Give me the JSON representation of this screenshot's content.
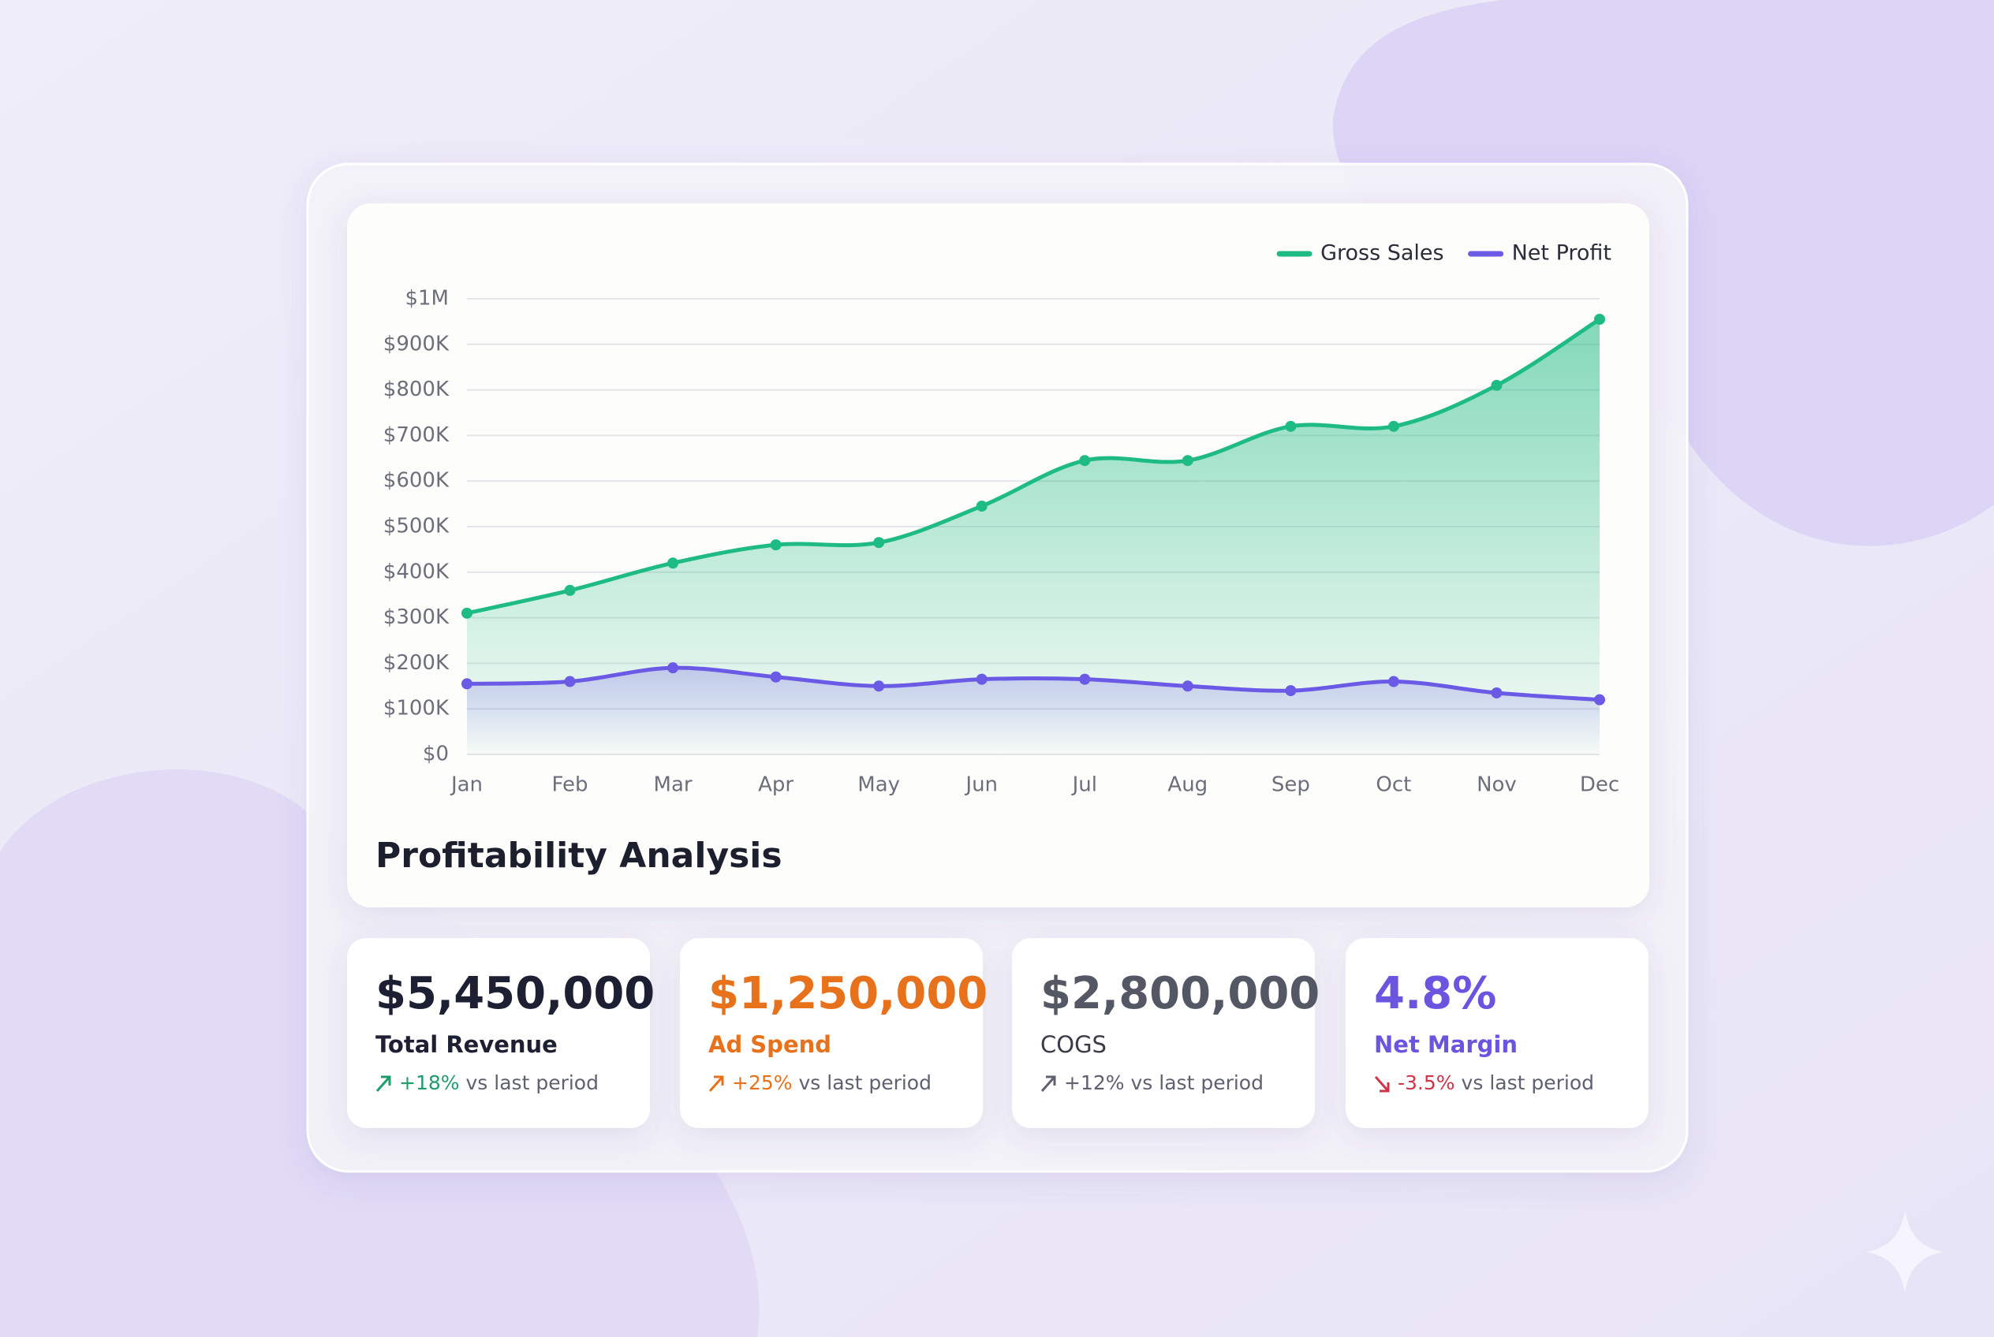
{
  "chart_data": {
    "type": "line",
    "title": "Profitability Analysis",
    "categories": [
      "Jan",
      "Feb",
      "Mar",
      "Apr",
      "May",
      "Jun",
      "Jul",
      "Aug",
      "Sep",
      "Oct",
      "Nov",
      "Dec"
    ],
    "series": [
      {
        "name": "Gross Sales",
        "color": "#1fbb84",
        "values": [
          310000,
          360000,
          420000,
          460000,
          465000,
          545000,
          645000,
          645000,
          720000,
          720000,
          810000,
          955000
        ]
      },
      {
        "name": "Net Profit",
        "color": "#6a5ae6",
        "values": [
          155000,
          160000,
          190000,
          170000,
          150000,
          165000,
          165000,
          150000,
          140000,
          160000,
          135000,
          120000
        ]
      }
    ],
    "ylim": [
      0,
      1000000
    ],
    "yticks": [
      {
        "value": 0,
        "label": "$0"
      },
      {
        "value": 100000,
        "label": "$100K"
      },
      {
        "value": 200000,
        "label": "$200K"
      },
      {
        "value": 300000,
        "label": "$300K"
      },
      {
        "value": 400000,
        "label": "$400K"
      },
      {
        "value": 500000,
        "label": "$500K"
      },
      {
        "value": 600000,
        "label": "$600K"
      },
      {
        "value": 700000,
        "label": "$700K"
      },
      {
        "value": 800000,
        "label": "$800K"
      },
      {
        "value": 900000,
        "label": "$900K"
      },
      {
        "value": 1000000,
        "label": "$1M"
      }
    ],
    "grid": true,
    "legend": "top-right",
    "area": true
  },
  "kpis": [
    {
      "value": "$5,450,000",
      "label": "Total Revenue",
      "change": "+18%",
      "note": "vs last period"
    },
    {
      "value": "$1,250,000",
      "label": "Ad Spend",
      "change": "+25%",
      "note": "vs last period"
    },
    {
      "value": "$2,800,000",
      "label": "COGS",
      "change": "+12%",
      "note": "vs last period"
    },
    {
      "value": "4.8%",
      "label": "Net Margin",
      "change": "-3.5%",
      "note": "vs last period"
    }
  ]
}
